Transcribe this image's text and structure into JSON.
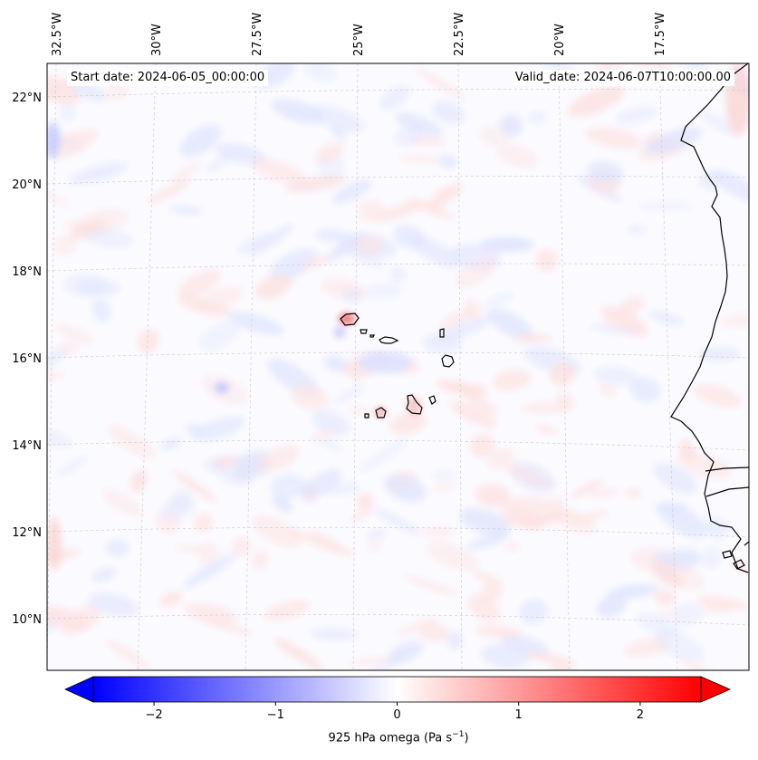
{
  "map": {
    "start_date_text": "Start date: 2024-06-05_00:00:00",
    "valid_date_text": "Valid_date: 2024-06-07T10:00:00.00",
    "lon_ticks": [
      "32.5°W",
      "30°W",
      "27.5°W",
      "25°W",
      "22.5°W",
      "20°W",
      "17.5°W"
    ],
    "lat_ticks": [
      "22°N",
      "20°N",
      "18°N",
      "16°N",
      "14°N",
      "12°N",
      "10°N"
    ],
    "colorbar": {
      "ticks": [
        "−2",
        "−1",
        "0",
        "1",
        "2"
      ],
      "label": "925 hPa omega (Pa s",
      "label_sup": "−1",
      "label_end": ")",
      "range": [
        -2.5,
        2.5
      ],
      "low_color": "#0000ff",
      "mid_color": "#ffffff",
      "high_color": "#ff0000"
    },
    "colors": {
      "coastline": "#000000",
      "gridline": "#c8c8c8",
      "positive_tint": "#fde0e0",
      "negative_tint": "#e0e4fd"
    },
    "field_scale": 0.35
  }
}
